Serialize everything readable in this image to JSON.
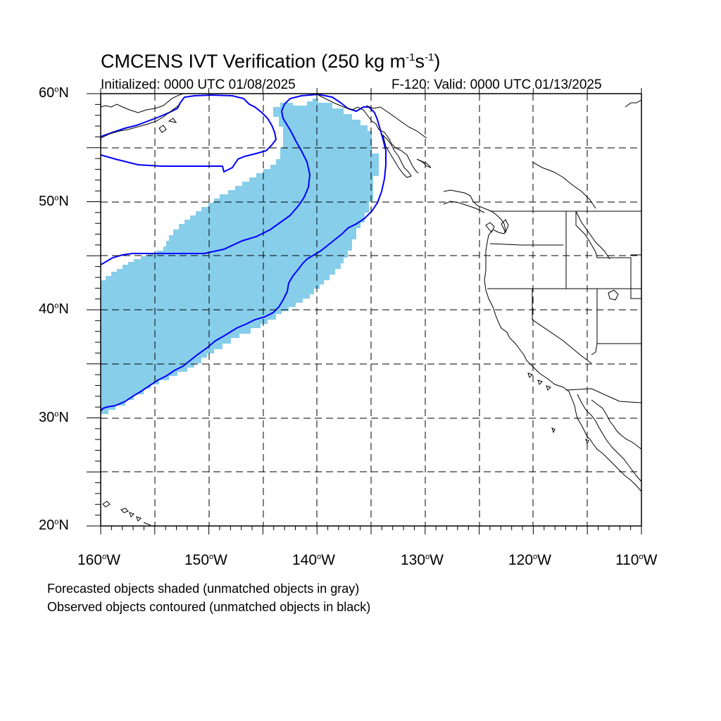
{
  "title": {
    "main": "CMCENS IVT Verification (250 kg m",
    "sup1": "-1",
    "mid": "s",
    "sup2": "-1",
    "end": ")"
  },
  "init_text": "Initialized: 0000 UTC 01/08/2025",
  "valid_text": "F-120: Valid: 0000 UTC 01/13/2025",
  "lat_labels": [
    {
      "deg": "60",
      "suffix": "N"
    },
    {
      "deg": "50",
      "suffix": "N"
    },
    {
      "deg": "40",
      "suffix": "N"
    },
    {
      "deg": "30",
      "suffix": "N"
    },
    {
      "deg": "20",
      "suffix": "N"
    }
  ],
  "lon_labels": [
    {
      "deg": "160",
      "suffix": "W"
    },
    {
      "deg": "150",
      "suffix": "W"
    },
    {
      "deg": "140",
      "suffix": "W"
    },
    {
      "deg": "130",
      "suffix": "W"
    },
    {
      "deg": "120",
      "suffix": "W"
    },
    {
      "deg": "110",
      "suffix": "W"
    }
  ],
  "notes": [
    "Forecasted objects shaded (unmatched objects in gray)",
    "Observed objects contoured (unmatched objects in black)"
  ],
  "map": {
    "lon_range": [
      -160,
      -110
    ],
    "lat_range": [
      20,
      60
    ],
    "grid_spacing_deg": 5,
    "grid_style": "dashed",
    "forecast_fill_color": "#87ceeb",
    "observed_contour_color": "#0000ff",
    "coastline_color": "#000000"
  }
}
